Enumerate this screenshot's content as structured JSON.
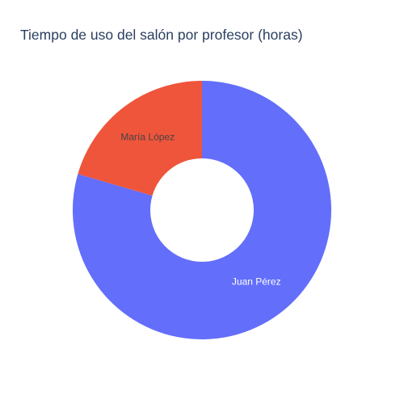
{
  "chart_data": {
    "type": "pie",
    "hole": 0.4,
    "title": "Tiempo de uso del salón por profesor (horas)",
    "labels": [
      "Juan Pérez",
      "María López"
    ],
    "values": [
      79.5,
      20.5
    ],
    "colors": [
      "#636efa",
      "#ef553b"
    ],
    "label_colors": [
      "#ffffff",
      "#444444"
    ],
    "direction": "clockwise",
    "rotation_start": "top"
  }
}
